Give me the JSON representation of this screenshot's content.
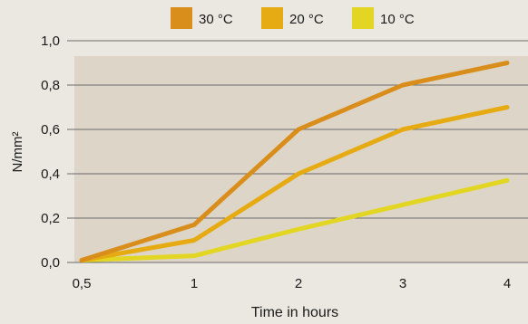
{
  "chart_data": {
    "type": "line",
    "title": "",
    "xlabel": "Time in hours",
    "ylabel": "N/mm²",
    "x": [
      0.5,
      1,
      2,
      3,
      4
    ],
    "x_tick_labels": [
      "0,5",
      "1",
      "2",
      "3",
      "4"
    ],
    "y_ticks": [
      0.0,
      0.2,
      0.4,
      0.6,
      0.8,
      1.0
    ],
    "y_tick_labels": [
      "0,0",
      "0,2",
      "0,4",
      "0,6",
      "0,8",
      "1,0"
    ],
    "ylim": [
      0,
      1.0
    ],
    "grid": "horizontal",
    "legend_position": "top-center",
    "series": [
      {
        "name": "30 °C",
        "color": "#d98e1c",
        "values": [
          0.01,
          0.17,
          0.6,
          0.8,
          0.9
        ]
      },
      {
        "name": "20 °C",
        "color": "#e6aa12",
        "values": [
          0.01,
          0.1,
          0.4,
          0.6,
          0.7
        ]
      },
      {
        "name": "10 °C",
        "color": "#e2d622",
        "values": [
          0.01,
          0.03,
          0.15,
          0.26,
          0.37
        ]
      }
    ],
    "colors": {
      "plot_background": "#ddd6c8",
      "page_background": "#ebe8e2",
      "grid": "#6a6a6a"
    }
  }
}
